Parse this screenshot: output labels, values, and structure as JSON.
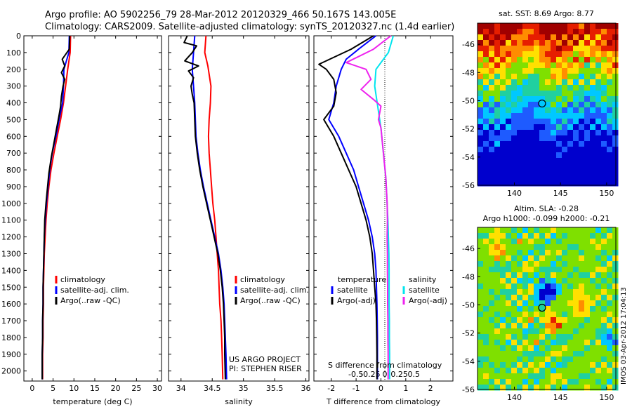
{
  "header": {
    "line1": "Argo profile: AO 5902256_79 28-Mar-2012 20120329_466 50.167S 143.005E",
    "line2": "Climatology: CARS2009. Satellite-adjusted climatology: synTS_20120327.nc (1.4d earlier)"
  },
  "colors": {
    "clim": "#ff0000",
    "sat": "#0000ff",
    "argo": "#000000",
    "sal_sat": "#00e5ee",
    "sal_argo": "#ee22ee"
  },
  "chart_data": [
    {
      "type": "line",
      "xlabel": "temperature (deg C)",
      "ylabel": "",
      "xlim": [
        -2,
        31
      ],
      "ylim": [
        2060,
        0
      ],
      "xticks": [
        0,
        5,
        10,
        15,
        20,
        25,
        30
      ],
      "yticks": [
        0,
        100,
        200,
        300,
        400,
        500,
        600,
        700,
        800,
        900,
        1000,
        1100,
        1200,
        1300,
        1400,
        1500,
        1600,
        1700,
        1800,
        1900,
        2000
      ],
      "legend": [
        "climatology",
        "satellite-adj. clim.",
        "Argo(..raw -QC)"
      ],
      "series": [
        {
          "name": "climatology",
          "color": "clim",
          "points": [
            [
              9.2,
              0
            ],
            [
              9.1,
              100
            ],
            [
              8.5,
              200
            ],
            [
              8.0,
              300
            ],
            [
              7.5,
              400
            ],
            [
              6.8,
              500
            ],
            [
              6.0,
              600
            ],
            [
              5.2,
              700
            ],
            [
              4.5,
              800
            ],
            [
              4.0,
              900
            ],
            [
              3.6,
              1000
            ],
            [
              3.3,
              1100
            ],
            [
              3.1,
              1200
            ],
            [
              2.9,
              1300
            ],
            [
              2.8,
              1400
            ],
            [
              2.7,
              1500
            ],
            [
              2.7,
              1600
            ],
            [
              2.6,
              1700
            ],
            [
              2.6,
              1800
            ],
            [
              2.5,
              1900
            ],
            [
              2.5,
              2050
            ]
          ]
        },
        {
          "name": "satellite-adj. clim.",
          "color": "sat",
          "points": [
            [
              8.9,
              0
            ],
            [
              8.8,
              100
            ],
            [
              7.6,
              200
            ],
            [
              7.5,
              300
            ],
            [
              7.3,
              400
            ],
            [
              6.6,
              480
            ],
            [
              5.7,
              600
            ],
            [
              4.8,
              700
            ],
            [
              4.2,
              800
            ],
            [
              3.8,
              900
            ],
            [
              3.4,
              1000
            ],
            [
              3.1,
              1100
            ],
            [
              2.9,
              1200
            ],
            [
              2.8,
              1300
            ],
            [
              2.7,
              1400
            ],
            [
              2.6,
              1500
            ],
            [
              2.6,
              1600
            ],
            [
              2.5,
              1700
            ],
            [
              2.5,
              1800
            ],
            [
              2.4,
              1900
            ],
            [
              2.4,
              2050
            ]
          ]
        },
        {
          "name": "Argo(..raw -QC)",
          "color": "argo",
          "points": [
            [
              9.0,
              0
            ],
            [
              8.9,
              80
            ],
            [
              7.2,
              140
            ],
            [
              7.8,
              180
            ],
            [
              7.0,
              220
            ],
            [
              7.8,
              260
            ],
            [
              7.4,
              300
            ],
            [
              7.0,
              360
            ],
            [
              6.8,
              420
            ],
            [
              6.4,
              480
            ],
            [
              5.8,
              560
            ],
            [
              5.2,
              640
            ],
            [
              4.6,
              720
            ],
            [
              4.0,
              820
            ],
            [
              3.6,
              920
            ],
            [
              3.3,
              1000
            ],
            [
              3.0,
              1100
            ],
            [
              2.9,
              1200
            ],
            [
              2.8,
              1300
            ],
            [
              2.7,
              1400
            ],
            [
              2.6,
              1500
            ],
            [
              2.6,
              1600
            ],
            [
              2.5,
              1700
            ],
            [
              2.5,
              1800
            ],
            [
              2.4,
              1900
            ],
            [
              2.4,
              2050
            ]
          ]
        }
      ]
    },
    {
      "type": "line",
      "xlabel": "salinity",
      "ylabel": "",
      "xlim": [
        33.8,
        36.05
      ],
      "ylim": [
        2060,
        0
      ],
      "xticks": [
        34,
        34.5,
        35,
        35.5,
        36
      ],
      "xticklabels": [
        "34",
        "34.5",
        "35",
        "35.5",
        "36"
      ],
      "legend": [
        "climatology",
        "satellite-adj. clim.",
        "Argo(..raw -QC)"
      ],
      "annotation": [
        "US ARGO PROJECT",
        "PI: STEPHEN RISER"
      ],
      "series": [
        {
          "name": "climatology",
          "color": "clim",
          "points": [
            [
              34.4,
              0
            ],
            [
              34.38,
              100
            ],
            [
              34.43,
              180
            ],
            [
              34.48,
              300
            ],
            [
              34.47,
              400
            ],
            [
              34.45,
              500
            ],
            [
              34.44,
              600
            ],
            [
              34.45,
              700
            ],
            [
              34.47,
              800
            ],
            [
              34.49,
              900
            ],
            [
              34.51,
              1000
            ],
            [
              34.54,
              1100
            ],
            [
              34.56,
              1200
            ],
            [
              34.58,
              1300
            ],
            [
              34.6,
              1400
            ],
            [
              34.61,
              1500
            ],
            [
              34.62,
              1600
            ],
            [
              34.64,
              1700
            ],
            [
              34.65,
              1800
            ],
            [
              34.66,
              1900
            ],
            [
              34.67,
              2050
            ]
          ]
        },
        {
          "name": "satellite-adj. clim.",
          "color": "sat",
          "points": [
            [
              34.22,
              0
            ],
            [
              34.2,
              100
            ],
            [
              34.18,
              200
            ],
            [
              34.2,
              300
            ],
            [
              34.22,
              400
            ],
            [
              34.23,
              500
            ],
            [
              34.24,
              600
            ],
            [
              34.27,
              700
            ],
            [
              34.31,
              800
            ],
            [
              34.36,
              900
            ],
            [
              34.42,
              1000
            ],
            [
              34.48,
              1100
            ],
            [
              34.54,
              1200
            ],
            [
              34.6,
              1300
            ],
            [
              34.64,
              1400
            ],
            [
              34.67,
              1500
            ],
            [
              34.69,
              1600
            ],
            [
              34.7,
              1700
            ],
            [
              34.71,
              1800
            ],
            [
              34.72,
              1900
            ],
            [
              34.73,
              2050
            ]
          ]
        },
        {
          "name": "Argo(..raw -QC)",
          "color": "argo",
          "points": [
            [
              34.1,
              0
            ],
            [
              34.05,
              40
            ],
            [
              34.25,
              60
            ],
            [
              34.18,
              100
            ],
            [
              34.06,
              150
            ],
            [
              34.28,
              180
            ],
            [
              34.12,
              210
            ],
            [
              34.2,
              250
            ],
            [
              34.16,
              300
            ],
            [
              34.18,
              350
            ],
            [
              34.21,
              400
            ],
            [
              34.22,
              500
            ],
            [
              34.23,
              600
            ],
            [
              34.26,
              700
            ],
            [
              34.3,
              800
            ],
            [
              34.35,
              900
            ],
            [
              34.41,
              1000
            ],
            [
              34.47,
              1100
            ],
            [
              34.53,
              1200
            ],
            [
              34.59,
              1300
            ],
            [
              34.63,
              1400
            ],
            [
              34.66,
              1500
            ],
            [
              34.68,
              1600
            ],
            [
              34.69,
              1700
            ],
            [
              34.7,
              1800
            ],
            [
              34.7,
              1900
            ],
            [
              34.71,
              2050
            ]
          ]
        }
      ]
    },
    {
      "type": "line",
      "xlabel": "T difference from climatology",
      "xlabel_top": "S difference from climatology",
      "xlim": [
        -2.7,
        2.9
      ],
      "ylim": [
        2060,
        0
      ],
      "xticks": [
        -2,
        -1,
        0,
        1,
        2
      ],
      "xticklabels": [
        "-2",
        "-1",
        "0",
        "1",
        "2"
      ],
      "xticks_top": [
        -0.5,
        -0.25,
        0,
        0.25,
        0.5
      ],
      "xticklabels_top": [
        "-0.5",
        "-0.25",
        "0",
        "0.25",
        "0.5"
      ],
      "legend_left_title": "temperature",
      "legend_left": [
        "satellite",
        "Argo(-adj)"
      ],
      "legend_right_title": "salinity",
      "legend_right": [
        "satellite",
        "Argo(-adj)"
      ],
      "series": [
        {
          "name": "satellite",
          "color": "sat",
          "points": [
            [
              -0.2,
              0
            ],
            [
              -0.9,
              80
            ],
            [
              -1.4,
              140
            ],
            [
              -1.6,
              200
            ],
            [
              -1.8,
              300
            ],
            [
              -1.9,
              400
            ],
            [
              -2.1,
              500
            ],
            [
              -1.7,
              600
            ],
            [
              -1.4,
              700
            ],
            [
              -1.1,
              800
            ],
            [
              -0.9,
              900
            ],
            [
              -0.7,
              1000
            ],
            [
              -0.5,
              1100
            ],
            [
              -0.35,
              1200
            ],
            [
              -0.25,
              1300
            ],
            [
              -0.2,
              1400
            ],
            [
              -0.18,
              1500
            ],
            [
              -0.16,
              1600
            ],
            [
              -0.15,
              1700
            ],
            [
              -0.14,
              1800
            ],
            [
              -0.14,
              1900
            ],
            [
              -0.14,
              2050
            ]
          ]
        },
        {
          "name": "Argo(-adj)",
          "color": "argo",
          "points": [
            [
              -0.3,
              0
            ],
            [
              -1.2,
              80
            ],
            [
              -2.5,
              170
            ],
            [
              -2.2,
              200
            ],
            [
              -1.9,
              260
            ],
            [
              -1.8,
              340
            ],
            [
              -1.9,
              420
            ],
            [
              -2.3,
              500
            ],
            [
              -1.9,
              600
            ],
            [
              -1.6,
              700
            ],
            [
              -1.3,
              800
            ],
            [
              -1.0,
              900
            ],
            [
              -0.8,
              1000
            ],
            [
              -0.6,
              1100
            ],
            [
              -0.45,
              1200
            ],
            [
              -0.35,
              1300
            ],
            [
              -0.3,
              1400
            ],
            [
              -0.25,
              1500
            ],
            [
              -0.2,
              1600
            ],
            [
              -0.18,
              1700
            ],
            [
              -0.17,
              1800
            ],
            [
              -0.16,
              1900
            ],
            [
              -0.16,
              2050
            ]
          ]
        },
        {
          "name": "satellite",
          "color": "sal_sat",
          "points": [
            [
              0.5,
              0
            ],
            [
              0.3,
              100
            ],
            [
              -0.2,
              200
            ],
            [
              -0.25,
              300
            ],
            [
              -0.1,
              450
            ],
            [
              0.0,
              550
            ],
            [
              0.1,
              700
            ],
            [
              0.2,
              850
            ],
            [
              0.25,
              1000
            ],
            [
              0.28,
              1100
            ],
            [
              0.3,
              1200
            ],
            [
              0.32,
              1300
            ],
            [
              0.33,
              1400
            ],
            [
              0.33,
              1500
            ],
            [
              0.33,
              1600
            ],
            [
              0.34,
              1700
            ],
            [
              0.34,
              1800
            ],
            [
              0.35,
              1900
            ],
            [
              0.35,
              2050
            ]
          ]
        },
        {
          "name": "Argo(-adj)",
          "color": "sal_argo",
          "points": [
            [
              0.4,
              0
            ],
            [
              -0.3,
              80
            ],
            [
              -1.4,
              160
            ],
            [
              -0.6,
              200
            ],
            [
              -0.4,
              260
            ],
            [
              -0.8,
              320
            ],
            [
              -0.3,
              380
            ],
            [
              0.0,
              420
            ],
            [
              -0.1,
              500
            ],
            [
              0.0,
              550
            ],
            [
              0.1,
              700
            ],
            [
              0.2,
              850
            ],
            [
              0.25,
              1000
            ],
            [
              0.26,
              1100
            ],
            [
              0.25,
              1200
            ],
            [
              0.26,
              1300
            ],
            [
              0.26,
              1400
            ],
            [
              0.27,
              1500
            ],
            [
              0.27,
              1600
            ],
            [
              0.28,
              1700
            ],
            [
              0.28,
              1800
            ],
            [
              0.29,
              1900
            ],
            [
              0.29,
              2050
            ]
          ]
        }
      ]
    },
    {
      "type": "heatmap",
      "title": "sat. SST: 8.69  Argo: 8.77",
      "xlim": [
        136,
        151
      ],
      "ylim": [
        -56,
        -44.5
      ],
      "xticks": [
        140,
        145,
        150
      ],
      "yticks": [
        -56,
        -54,
        -52,
        -50,
        -48,
        -46
      ],
      "marker": [
        143.0,
        -50.2
      ]
    },
    {
      "type": "heatmap",
      "title": "Altim. SLA: -0.28",
      "subtitle": "Argo h1000: -0.099 h2000: -0.21",
      "xlim": [
        136,
        151
      ],
      "ylim": [
        -56,
        -44.5
      ],
      "xticks": [
        140,
        145,
        150
      ],
      "yticks": [
        -56,
        -54,
        -52,
        -50,
        -48,
        -46
      ],
      "marker": [
        143.0,
        -50.2
      ],
      "side_label": "IMOS 03-Apr-2012 17:04:13"
    }
  ]
}
